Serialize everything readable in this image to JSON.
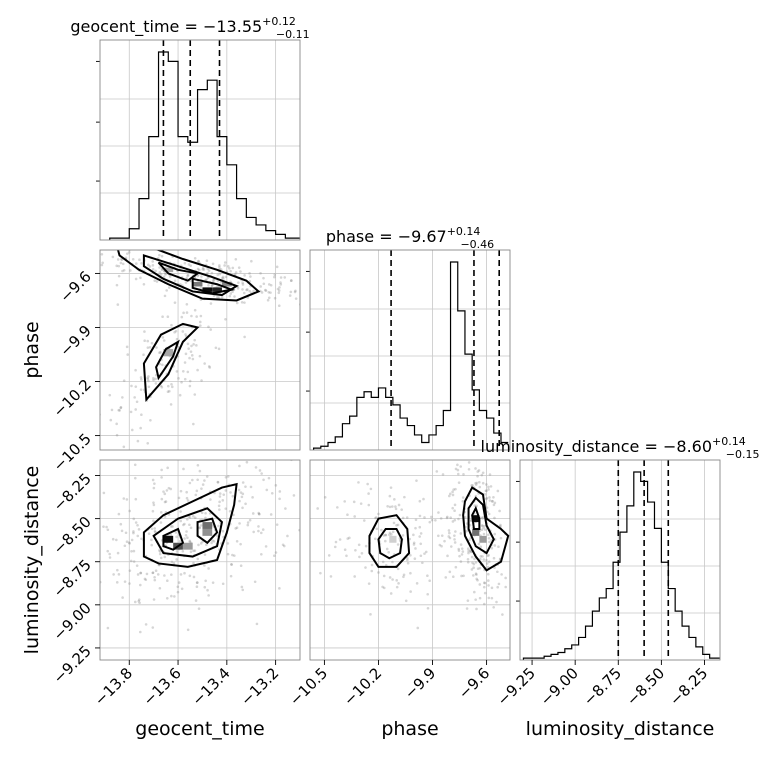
{
  "chart_data": {
    "type": "corner",
    "parameters": [
      "geocent_time",
      "phase",
      "luminosity_distance"
    ],
    "titles": [
      {
        "param": "geocent_time",
        "main": "geocent_time = −13.55",
        "sup": "+0.12",
        "sub": "−0.11"
      },
      {
        "param": "phase",
        "main": "phase = −9.67",
        "sup": "+0.14",
        "sub": "−0.46"
      },
      {
        "param": "luminosity_distance",
        "main": "luminosity_distance = −8.60",
        "sup": "+0.14",
        "sub": "−0.15"
      }
    ],
    "ranges": {
      "geocent_time": [
        -13.92,
        -13.1
      ],
      "phase": [
        -10.58,
        -9.47
      ],
      "luminosity_distance": [
        -9.32,
        -8.16
      ]
    },
    "ticks": {
      "geocent_time": [
        -13.8,
        -13.6,
        -13.4,
        -13.2
      ],
      "phase": [
        -10.5,
        -10.2,
        -9.9,
        -9.6
      ],
      "luminosity_distance": [
        -9.25,
        -9.0,
        -8.75,
        -8.5,
        -8.25
      ]
    },
    "tick_labels": {
      "geocent_time": [
        "−13.8",
        "−13.6",
        "−13.4",
        "−13.2"
      ],
      "phase": [
        "−10.5",
        "−10.2",
        "−9.9",
        "−9.6"
      ],
      "luminosity_distance": [
        "−9.25",
        "−9.00",
        "−8.75",
        "−8.50",
        "−8.25"
      ]
    },
    "quantiles": {
      "geocent_time": [
        -13.66,
        -13.55,
        -13.43
      ],
      "phase": [
        -10.13,
        -9.67,
        -9.53
      ],
      "luminosity_distance": [
        -8.75,
        -8.6,
        -8.46
      ]
    },
    "histograms": {
      "geocent_time": {
        "edges": [
          -13.88,
          -13.84,
          -13.8,
          -13.76,
          -13.72,
          -13.68,
          -13.64,
          -13.6,
          -13.56,
          -13.52,
          -13.48,
          -13.44,
          -13.4,
          -13.36,
          -13.32,
          -13.28,
          -13.24,
          -13.2,
          -13.16,
          -13.12,
          -13.1
        ],
        "counts": [
          1,
          1,
          6,
          22,
          55,
          100,
          95,
          55,
          52,
          80,
          85,
          55,
          40,
          22,
          12,
          8,
          5,
          3,
          1,
          1
        ]
      },
      "phase": {
        "edges": [
          -10.56,
          -10.52,
          -10.48,
          -10.44,
          -10.4,
          -10.36,
          -10.32,
          -10.28,
          -10.24,
          -10.2,
          -10.16,
          -10.12,
          -10.08,
          -10.04,
          -10.0,
          -9.96,
          -9.92,
          -9.88,
          -9.84,
          -9.8,
          -9.76,
          -9.72,
          -9.68,
          -9.64,
          -9.6,
          -9.56,
          -9.52,
          -9.48
        ],
        "counts": [
          1,
          2,
          4,
          7,
          14,
          18,
          28,
          31,
          28,
          33,
          28,
          24,
          17,
          13,
          8,
          4,
          8,
          13,
          21,
          100,
          74,
          51,
          32,
          21,
          17,
          9,
          4
        ]
      },
      "luminosity_distance": {
        "edges": [
          -9.3,
          -9.26,
          -9.22,
          -9.18,
          -9.14,
          -9.1,
          -9.06,
          -9.02,
          -8.98,
          -8.94,
          -8.9,
          -8.86,
          -8.82,
          -8.78,
          -8.74,
          -8.7,
          -8.66,
          -8.62,
          -8.58,
          -8.54,
          -8.5,
          -8.46,
          -8.42,
          -8.38,
          -8.34,
          -8.3,
          -8.26,
          -8.22,
          -8.18,
          -8.16
        ],
        "counts": [
          1,
          1,
          1,
          2,
          3,
          4,
          6,
          8,
          12,
          18,
          26,
          33,
          38,
          52,
          68,
          82,
          100,
          95,
          84,
          70,
          52,
          38,
          26,
          18,
          12,
          7,
          3,
          1,
          1
        ]
      }
    },
    "sample_clusters": [
      {
        "x": "geocent_time",
        "y": "phase",
        "center": [
          -13.5,
          -9.62
        ],
        "spread": [
          0.14,
          0.05
        ],
        "corr": -0.7,
        "n": 260
      },
      {
        "x": "geocent_time",
        "y": "phase",
        "center": [
          -13.64,
          -10.1
        ],
        "spread": [
          0.07,
          0.12
        ],
        "corr": 0.6,
        "n": 150
      },
      {
        "x": "geocent_time",
        "y": "luminosity_distance",
        "center": [
          -13.56,
          -8.6
        ],
        "spread": [
          0.13,
          0.13
        ],
        "corr": 0.3,
        "n": 380
      },
      {
        "x": "phase",
        "y": "luminosity_distance",
        "center": [
          -10.13,
          -8.63
        ],
        "spread": [
          0.1,
          0.12
        ],
        "corr": 0.0,
        "n": 140
      },
      {
        "x": "phase",
        "y": "luminosity_distance",
        "center": [
          -9.65,
          -8.58
        ],
        "spread": [
          0.06,
          0.14
        ],
        "corr": -0.2,
        "n": 240
      }
    ],
    "contours": [
      {
        "x": "geocent_time",
        "y": "phase",
        "pts": [
          [
            -13.86,
            -9.4
          ],
          [
            -13.72,
            -9.45
          ],
          [
            -13.58,
            -9.52
          ],
          [
            -13.44,
            -9.58
          ],
          [
            -13.32,
            -9.64
          ],
          [
            -13.27,
            -9.7
          ],
          [
            -13.36,
            -9.75
          ],
          [
            -13.5,
            -9.74
          ],
          [
            -13.64,
            -9.66
          ],
          [
            -13.76,
            -9.58
          ],
          [
            -13.84,
            -9.5
          ]
        ]
      },
      {
        "x": "geocent_time",
        "y": "phase",
        "pts": [
          [
            -13.74,
            -9.5
          ],
          [
            -13.6,
            -9.56
          ],
          [
            -13.46,
            -9.62
          ],
          [
            -13.36,
            -9.67
          ],
          [
            -13.42,
            -9.72
          ],
          [
            -13.54,
            -9.7
          ],
          [
            -13.66,
            -9.63
          ],
          [
            -13.74,
            -9.56
          ]
        ]
      },
      {
        "x": "geocent_time",
        "y": "phase",
        "pts": [
          [
            -13.68,
            -9.54
          ],
          [
            -13.6,
            -9.58
          ],
          [
            -13.52,
            -9.6
          ],
          [
            -13.56,
            -9.64
          ],
          [
            -13.64,
            -9.6
          ]
        ]
      },
      {
        "x": "geocent_time",
        "y": "phase",
        "pts": [
          [
            -13.54,
            -9.63
          ],
          [
            -13.44,
            -9.66
          ],
          [
            -13.38,
            -9.69
          ],
          [
            -13.46,
            -9.71
          ],
          [
            -13.54,
            -9.68
          ]
        ]
      },
      {
        "x": "geocent_time",
        "y": "phase",
        "pts": [
          [
            -13.73,
            -10.3
          ],
          [
            -13.64,
            -10.16
          ],
          [
            -13.58,
            -9.98
          ],
          [
            -13.52,
            -9.9
          ],
          [
            -13.58,
            -9.88
          ],
          [
            -13.67,
            -9.94
          ],
          [
            -13.74,
            -10.1
          ]
        ]
      },
      {
        "x": "geocent_time",
        "y": "phase",
        "pts": [
          [
            -13.68,
            -10.18
          ],
          [
            -13.62,
            -10.06
          ],
          [
            -13.6,
            -9.98
          ],
          [
            -13.65,
            -10.02
          ],
          [
            -13.69,
            -10.12
          ]
        ]
      },
      {
        "x": "geocent_time",
        "y": "luminosity_distance",
        "pts": [
          [
            -13.74,
            -8.58
          ],
          [
            -13.66,
            -8.48
          ],
          [
            -13.54,
            -8.4
          ],
          [
            -13.42,
            -8.32
          ],
          [
            -13.36,
            -8.3
          ],
          [
            -13.37,
            -8.42
          ],
          [
            -13.4,
            -8.58
          ],
          [
            -13.44,
            -8.74
          ],
          [
            -13.56,
            -8.78
          ],
          [
            -13.68,
            -8.76
          ],
          [
            -13.74,
            -8.72
          ]
        ]
      },
      {
        "x": "geocent_time",
        "y": "luminosity_distance",
        "pts": [
          [
            -13.7,
            -8.6
          ],
          [
            -13.6,
            -8.5
          ],
          [
            -13.48,
            -8.44
          ],
          [
            -13.42,
            -8.52
          ],
          [
            -13.44,
            -8.66
          ],
          [
            -13.54,
            -8.72
          ],
          [
            -13.66,
            -8.7
          ]
        ]
      },
      {
        "x": "geocent_time",
        "y": "luminosity_distance",
        "pts": [
          [
            -13.66,
            -8.6
          ],
          [
            -13.6,
            -8.56
          ],
          [
            -13.58,
            -8.64
          ],
          [
            -13.62,
            -8.68
          ],
          [
            -13.66,
            -8.66
          ]
        ]
      },
      {
        "x": "geocent_time",
        "y": "luminosity_distance",
        "pts": [
          [
            -13.52,
            -8.52
          ],
          [
            -13.46,
            -8.5
          ],
          [
            -13.44,
            -8.58
          ],
          [
            -13.48,
            -8.64
          ],
          [
            -13.52,
            -8.6
          ]
        ]
      },
      {
        "x": "phase",
        "y": "luminosity_distance",
        "pts": [
          [
            -10.25,
            -8.6
          ],
          [
            -10.2,
            -8.5
          ],
          [
            -10.1,
            -8.48
          ],
          [
            -10.04,
            -8.56
          ],
          [
            -10.03,
            -8.7
          ],
          [
            -10.1,
            -8.78
          ],
          [
            -10.2,
            -8.78
          ],
          [
            -10.25,
            -8.7
          ]
        ]
      },
      {
        "x": "phase",
        "y": "luminosity_distance",
        "pts": [
          [
            -10.2,
            -8.62
          ],
          [
            -10.16,
            -8.56
          ],
          [
            -10.1,
            -8.56
          ],
          [
            -10.07,
            -8.62
          ],
          [
            -10.08,
            -8.7
          ],
          [
            -10.14,
            -8.73
          ],
          [
            -10.19,
            -8.7
          ]
        ]
      },
      {
        "x": "phase",
        "y": "luminosity_distance",
        "pts": [
          [
            -9.72,
            -8.4
          ],
          [
            -9.68,
            -8.32
          ],
          [
            -9.62,
            -8.36
          ],
          [
            -9.6,
            -8.5
          ],
          [
            -9.52,
            -8.56
          ],
          [
            -9.48,
            -8.6
          ],
          [
            -9.52,
            -8.75
          ],
          [
            -9.6,
            -8.8
          ],
          [
            -9.66,
            -8.72
          ],
          [
            -9.72,
            -8.6
          ],
          [
            -9.73,
            -8.48
          ]
        ]
      },
      {
        "x": "phase",
        "y": "luminosity_distance",
        "pts": [
          [
            -9.7,
            -8.44
          ],
          [
            -9.66,
            -8.38
          ],
          [
            -9.62,
            -8.42
          ],
          [
            -9.6,
            -8.54
          ],
          [
            -9.56,
            -8.62
          ],
          [
            -9.6,
            -8.7
          ],
          [
            -9.66,
            -8.66
          ],
          [
            -9.7,
            -8.56
          ]
        ]
      },
      {
        "x": "phase",
        "y": "luminosity_distance",
        "pts": [
          [
            -9.68,
            -8.48
          ],
          [
            -9.66,
            -8.44
          ],
          [
            -9.64,
            -8.5
          ],
          [
            -9.64,
            -8.56
          ],
          [
            -9.67,
            -8.56
          ]
        ]
      }
    ],
    "density_cells": [
      {
        "x": "geocent_time",
        "y": "phase",
        "c": [
          -13.48,
          -9.69
        ],
        "size": [
          0.04,
          0.025
        ],
        "level": 1.0
      },
      {
        "x": "geocent_time",
        "y": "phase",
        "c": [
          -13.44,
          -9.69
        ],
        "size": [
          0.04,
          0.025
        ],
        "level": 0.9
      },
      {
        "x": "geocent_time",
        "y": "phase",
        "c": [
          -13.52,
          -9.66
        ],
        "size": [
          0.04,
          0.025
        ],
        "level": 0.5
      },
      {
        "x": "geocent_time",
        "y": "phase",
        "c": [
          -13.4,
          -9.66
        ],
        "size": [
          0.04,
          0.025
        ],
        "level": 0.45
      },
      {
        "x": "geocent_time",
        "y": "phase",
        "c": [
          -13.64,
          -9.58
        ],
        "size": [
          0.04,
          0.025
        ],
        "level": 0.3
      },
      {
        "x": "geocent_time",
        "y": "phase",
        "c": [
          -13.64,
          -10.04
        ],
        "size": [
          0.04,
          0.04
        ],
        "level": 0.3
      },
      {
        "x": "geocent_time",
        "y": "luminosity_distance",
        "c": [
          -13.64,
          -8.62
        ],
        "size": [
          0.04,
          0.04
        ],
        "level": 1.0
      },
      {
        "x": "geocent_time",
        "y": "luminosity_distance",
        "c": [
          -13.6,
          -8.66
        ],
        "size": [
          0.04,
          0.04
        ],
        "level": 0.7
      },
      {
        "x": "geocent_time",
        "y": "luminosity_distance",
        "c": [
          -13.48,
          -8.54
        ],
        "size": [
          0.04,
          0.04
        ],
        "level": 0.55
      },
      {
        "x": "geocent_time",
        "y": "luminosity_distance",
        "c": [
          -13.48,
          -8.58
        ],
        "size": [
          0.04,
          0.04
        ],
        "level": 0.4
      },
      {
        "x": "geocent_time",
        "y": "luminosity_distance",
        "c": [
          -13.56,
          -8.66
        ],
        "size": [
          0.04,
          0.04
        ],
        "level": 0.35
      },
      {
        "x": "phase",
        "y": "luminosity_distance",
        "c": [
          -9.66,
          -8.5
        ],
        "size": [
          0.04,
          0.04
        ],
        "level": 1.0
      },
      {
        "x": "phase",
        "y": "luminosity_distance",
        "c": [
          -9.66,
          -8.58
        ],
        "size": [
          0.04,
          0.04
        ],
        "level": 0.55
      },
      {
        "x": "phase",
        "y": "luminosity_distance",
        "c": [
          -9.62,
          -8.62
        ],
        "size": [
          0.04,
          0.04
        ],
        "level": 0.35
      },
      {
        "x": "phase",
        "y": "luminosity_distance",
        "c": [
          -10.12,
          -8.62
        ],
        "size": [
          0.04,
          0.04
        ],
        "level": 0.12
      }
    ],
    "grid": true
  }
}
